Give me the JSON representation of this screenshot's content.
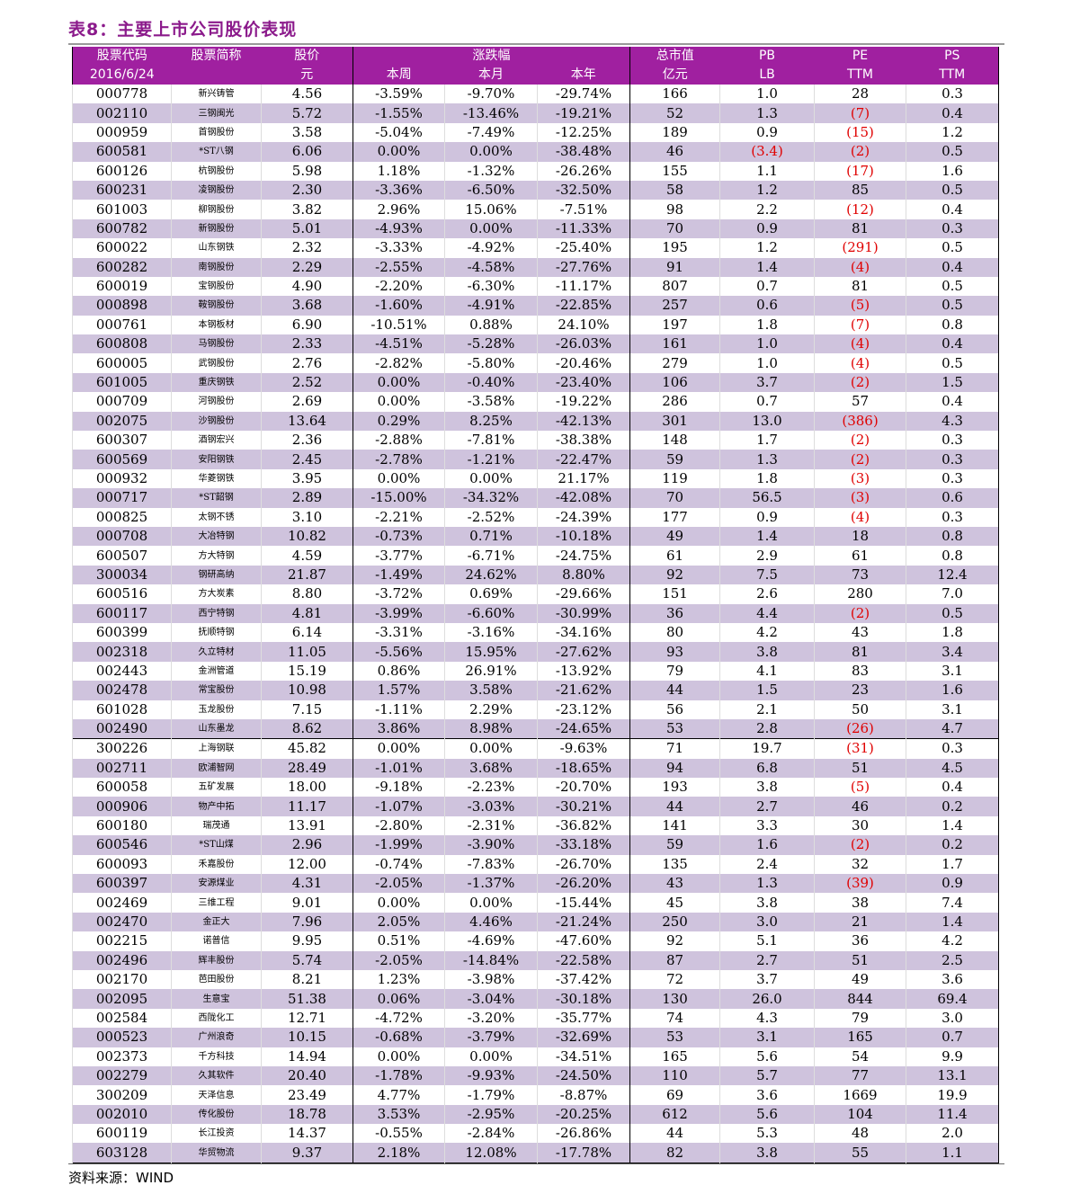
{
  "title": "表8：主要上市公司股价表现",
  "source": "资料来源：WIND",
  "header": {
    "code": "股票代码",
    "date": "2016/6/24",
    "name": "股票简称",
    "price": "股价",
    "price_unit": "元",
    "change": "涨跌幅",
    "week": "本周",
    "month": "本月",
    "year": "本年",
    "mcap": "总市值",
    "mcap_unit": "亿元",
    "pb": "PB",
    "pb_sub": "LB",
    "pe": "PE",
    "pe_sub": "TTM",
    "ps": "PS",
    "ps_sub": "TTM"
  },
  "colors": {
    "header_bg": "#a020a0",
    "alt_row": "#cfc3dd",
    "negative": "#e00000",
    "title": "#8b1a8b"
  },
  "rows": [
    [
      "000778",
      "新兴铸管",
      "4.56",
      "-3.59%",
      "-9.70%",
      "-29.74%",
      "166",
      "1.0",
      "28",
      "0.3"
    ],
    [
      "002110",
      "三钢闽光",
      "5.72",
      "-1.55%",
      "-13.46%",
      "-19.21%",
      "52",
      "1.3",
      "(7)",
      "0.4"
    ],
    [
      "000959",
      "首钢股份",
      "3.58",
      "-5.04%",
      "-7.49%",
      "-12.25%",
      "189",
      "0.9",
      "(15)",
      "1.2"
    ],
    [
      "600581",
      "*ST八钢",
      "6.06",
      "0.00%",
      "0.00%",
      "-38.48%",
      "46",
      "(3.4)",
      "(2)",
      "0.5"
    ],
    [
      "600126",
      "杭钢股份",
      "5.98",
      "1.18%",
      "-1.32%",
      "-26.26%",
      "155",
      "1.1",
      "(17)",
      "1.6"
    ],
    [
      "600231",
      "凌钢股份",
      "2.30",
      "-3.36%",
      "-6.50%",
      "-32.50%",
      "58",
      "1.2",
      "85",
      "0.5"
    ],
    [
      "601003",
      "柳钢股份",
      "3.82",
      "2.96%",
      "15.06%",
      "-7.51%",
      "98",
      "2.2",
      "(12)",
      "0.4"
    ],
    [
      "600782",
      "新钢股份",
      "5.01",
      "-4.93%",
      "0.00%",
      "-11.33%",
      "70",
      "0.9",
      "81",
      "0.3"
    ],
    [
      "600022",
      "山东钢铁",
      "2.32",
      "-3.33%",
      "-4.92%",
      "-25.40%",
      "195",
      "1.2",
      "(291)",
      "0.5"
    ],
    [
      "600282",
      "南钢股份",
      "2.29",
      "-2.55%",
      "-4.58%",
      "-27.76%",
      "91",
      "1.4",
      "(4)",
      "0.4"
    ],
    [
      "600019",
      "宝钢股份",
      "4.90",
      "-2.20%",
      "-6.30%",
      "-11.17%",
      "807",
      "0.7",
      "81",
      "0.5"
    ],
    [
      "000898",
      "鞍钢股份",
      "3.68",
      "-1.60%",
      "-4.91%",
      "-22.85%",
      "257",
      "0.6",
      "(5)",
      "0.5"
    ],
    [
      "000761",
      "本钢板材",
      "6.90",
      "-10.51%",
      "0.88%",
      "24.10%",
      "197",
      "1.8",
      "(7)",
      "0.8"
    ],
    [
      "600808",
      "马钢股份",
      "2.33",
      "-4.51%",
      "-5.28%",
      "-26.03%",
      "161",
      "1.0",
      "(4)",
      "0.4"
    ],
    [
      "600005",
      "武钢股份",
      "2.76",
      "-2.82%",
      "-5.80%",
      "-20.46%",
      "279",
      "1.0",
      "(4)",
      "0.5"
    ],
    [
      "601005",
      "重庆钢铁",
      "2.52",
      "0.00%",
      "-0.40%",
      "-23.40%",
      "106",
      "3.7",
      "(2)",
      "1.5"
    ],
    [
      "000709",
      "河钢股份",
      "2.69",
      "0.00%",
      "-3.58%",
      "-19.22%",
      "286",
      "0.7",
      "57",
      "0.4"
    ],
    [
      "002075",
      "沙钢股份",
      "13.64",
      "0.29%",
      "8.25%",
      "-42.13%",
      "301",
      "13.0",
      "(386)",
      "4.3"
    ],
    [
      "600307",
      "酒钢宏兴",
      "2.36",
      "-2.88%",
      "-7.81%",
      "-38.38%",
      "148",
      "1.7",
      "(2)",
      "0.3"
    ],
    [
      "600569",
      "安阳钢铁",
      "2.45",
      "-2.78%",
      "-1.21%",
      "-22.47%",
      "59",
      "1.3",
      "(2)",
      "0.3"
    ],
    [
      "000932",
      "华菱钢铁",
      "3.95",
      "0.00%",
      "0.00%",
      "21.17%",
      "119",
      "1.8",
      "(3)",
      "0.3"
    ],
    [
      "000717",
      "*ST韶钢",
      "2.89",
      "-15.00%",
      "-34.32%",
      "-42.08%",
      "70",
      "56.5",
      "(3)",
      "0.6"
    ],
    [
      "000825",
      "太钢不锈",
      "3.10",
      "-2.21%",
      "-2.52%",
      "-24.39%",
      "177",
      "0.9",
      "(4)",
      "0.3"
    ],
    [
      "000708",
      "大冶特钢",
      "10.82",
      "-0.73%",
      "0.71%",
      "-10.18%",
      "49",
      "1.4",
      "18",
      "0.8"
    ],
    [
      "600507",
      "方大特钢",
      "4.59",
      "-3.77%",
      "-6.71%",
      "-24.75%",
      "61",
      "2.9",
      "61",
      "0.8"
    ],
    [
      "300034",
      "钢研高纳",
      "21.87",
      "-1.49%",
      "24.62%",
      "8.80%",
      "92",
      "7.5",
      "73",
      "12.4"
    ],
    [
      "600516",
      "方大炭素",
      "8.80",
      "-3.72%",
      "0.69%",
      "-29.66%",
      "151",
      "2.6",
      "280",
      "7.0"
    ],
    [
      "600117",
      "西宁特钢",
      "4.81",
      "-3.99%",
      "-6.60%",
      "-30.99%",
      "36",
      "4.4",
      "(2)",
      "0.5"
    ],
    [
      "600399",
      "抚顺特钢",
      "6.14",
      "-3.31%",
      "-3.16%",
      "-34.16%",
      "80",
      "4.2",
      "43",
      "1.8"
    ],
    [
      "002318",
      "久立特材",
      "11.05",
      "-5.56%",
      "15.95%",
      "-27.62%",
      "93",
      "3.8",
      "81",
      "3.4"
    ],
    [
      "002443",
      "金洲管道",
      "15.19",
      "0.86%",
      "26.91%",
      "-13.92%",
      "79",
      "4.1",
      "83",
      "3.1"
    ],
    [
      "002478",
      "常宝股份",
      "10.98",
      "1.57%",
      "3.58%",
      "-21.62%",
      "44",
      "1.5",
      "23",
      "1.6"
    ],
    [
      "601028",
      "玉龙股份",
      "7.15",
      "-1.11%",
      "2.29%",
      "-23.12%",
      "56",
      "2.1",
      "50",
      "3.1"
    ],
    [
      "002490",
      "山东墨龙",
      "8.62",
      "3.86%",
      "8.98%",
      "-24.65%",
      "53",
      "2.8",
      "(26)",
      "4.7"
    ],
    [
      "300226",
      "上海钢联",
      "45.82",
      "0.00%",
      "0.00%",
      "-9.63%",
      "71",
      "19.7",
      "(31)",
      "0.3"
    ],
    [
      "002711",
      "欧浦智网",
      "28.49",
      "-1.01%",
      "3.68%",
      "-18.65%",
      "94",
      "6.8",
      "51",
      "4.5"
    ],
    [
      "600058",
      "五矿发展",
      "18.00",
      "-9.18%",
      "-2.23%",
      "-20.70%",
      "193",
      "3.8",
      "(5)",
      "0.4"
    ],
    [
      "000906",
      "物产中拓",
      "11.17",
      "-1.07%",
      "-3.03%",
      "-30.21%",
      "44",
      "2.7",
      "46",
      "0.2"
    ],
    [
      "600180",
      "瑞茂通",
      "13.91",
      "-2.80%",
      "-2.31%",
      "-36.82%",
      "141",
      "3.3",
      "30",
      "1.4"
    ],
    [
      "600546",
      "*ST山煤",
      "2.96",
      "-1.99%",
      "-3.90%",
      "-33.18%",
      "59",
      "1.6",
      "(2)",
      "0.2"
    ],
    [
      "600093",
      "禾嘉股份",
      "12.00",
      "-0.74%",
      "-7.83%",
      "-26.70%",
      "135",
      "2.4",
      "32",
      "1.7"
    ],
    [
      "600397",
      "安源煤业",
      "4.31",
      "-2.05%",
      "-1.37%",
      "-26.20%",
      "43",
      "1.3",
      "(39)",
      "0.9"
    ],
    [
      "002469",
      "三维工程",
      "9.01",
      "0.00%",
      "0.00%",
      "-15.44%",
      "45",
      "3.8",
      "38",
      "7.4"
    ],
    [
      "002470",
      "金正大",
      "7.96",
      "2.05%",
      "4.46%",
      "-21.24%",
      "250",
      "3.0",
      "21",
      "1.4"
    ],
    [
      "002215",
      "诺普信",
      "9.95",
      "0.51%",
      "-4.69%",
      "-47.60%",
      "92",
      "5.1",
      "36",
      "4.2"
    ],
    [
      "002496",
      "辉丰股份",
      "5.74",
      "-2.05%",
      "-14.84%",
      "-22.58%",
      "87",
      "2.7",
      "51",
      "2.5"
    ],
    [
      "002170",
      "芭田股份",
      "8.21",
      "1.23%",
      "-3.98%",
      "-37.42%",
      "72",
      "3.7",
      "49",
      "3.6"
    ],
    [
      "002095",
      "生意宝",
      "51.38",
      "0.06%",
      "-3.04%",
      "-30.18%",
      "130",
      "26.0",
      "844",
      "69.4"
    ],
    [
      "002584",
      "西陇化工",
      "12.71",
      "-4.72%",
      "-3.20%",
      "-35.77%",
      "74",
      "4.3",
      "79",
      "3.0"
    ],
    [
      "000523",
      "广州浪奇",
      "10.15",
      "-0.68%",
      "-3.79%",
      "-32.69%",
      "53",
      "3.1",
      "165",
      "0.7"
    ],
    [
      "002373",
      "千方科技",
      "14.94",
      "0.00%",
      "0.00%",
      "-34.51%",
      "165",
      "5.6",
      "54",
      "9.9"
    ],
    [
      "002279",
      "久其软件",
      "20.40",
      "-1.78%",
      "-9.93%",
      "-24.50%",
      "110",
      "5.7",
      "77",
      "13.1"
    ],
    [
      "300209",
      "天泽信息",
      "23.49",
      "4.77%",
      "-1.79%",
      "-8.87%",
      "69",
      "3.6",
      "1669",
      "19.9"
    ],
    [
      "002010",
      "传化股份",
      "18.78",
      "3.53%",
      "-2.95%",
      "-20.25%",
      "612",
      "5.6",
      "104",
      "11.4"
    ],
    [
      "600119",
      "长江投资",
      "14.37",
      "-0.55%",
      "-2.84%",
      "-26.86%",
      "44",
      "5.3",
      "48",
      "2.0"
    ],
    [
      "603128",
      "华贸物流",
      "9.37",
      "2.18%",
      "12.08%",
      "-17.78%",
      "82",
      "3.8",
      "55",
      "1.1"
    ]
  ]
}
